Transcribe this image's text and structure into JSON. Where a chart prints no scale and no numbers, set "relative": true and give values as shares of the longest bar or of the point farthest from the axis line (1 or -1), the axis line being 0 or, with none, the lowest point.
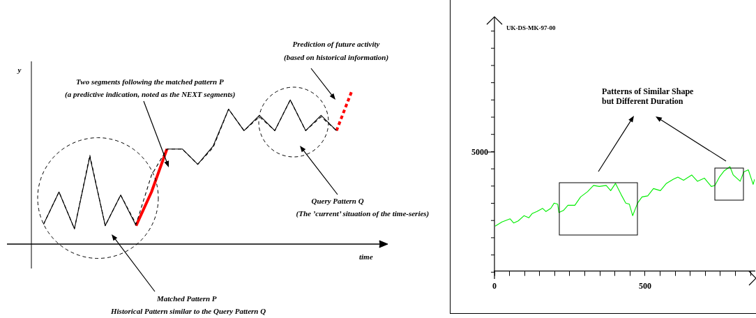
{
  "chart_data": [
    {
      "type": "line",
      "relative": true,
      "categories": [
        null,
        null,
        null,
        null,
        null,
        null,
        null,
        null,
        null,
        null,
        null,
        null,
        null,
        null,
        null,
        null,
        null,
        null,
        null,
        null,
        null
      ],
      "tick_labels": false,
      "grid": false,
      "legend": false,
      "marker": "none",
      "xlabel": "time",
      "ylabel": "y",
      "annotations": [
        "Prediction of future activity",
        "(based on historical information)",
        "Two segments following the matched pattern P",
        "(a predictive indication, noted as the NEXT segments)",
        "Query Pattern Q",
        "(The ’current’ situation of the time-series)",
        "Matched Pattern P",
        "Historical Pattern similar to the Query Pattern Q"
      ],
      "series": [
        {
          "color": "#000000",
          "line_style": "dashed",
          "values": [
            0.13,
            0.34,
            0.1,
            0.58,
            0.12,
            0.32,
            0.13,
            0.45,
            0.62,
            0.62,
            0.52,
            0.63,
            0.88,
            0.74,
            0.83,
            0.74,
            0.94,
            0.74,
            0.83,
            0.74,
            null
          ]
        },
        {
          "color": "#000000",
          "line_style": "solid",
          "values": [
            0.13,
            0.34,
            0.1,
            0.57,
            0.12,
            0.32,
            0.12,
            null,
            null,
            null,
            null,
            null,
            null,
            null,
            null,
            null,
            null,
            null,
            null,
            null,
            null
          ]
        },
        {
          "color": "#000000",
          "line_style": "solid",
          "values": [
            null,
            null,
            null,
            null,
            null,
            null,
            null,
            null,
            0.62,
            0.62,
            0.52,
            0.64,
            0.88,
            0.74,
            0.84,
            0.74,
            0.94,
            0.74,
            0.84,
            0.74,
            null
          ]
        },
        {
          "color": "#ff0000",
          "line_style": "solid",
          "values": [
            null,
            null,
            null,
            null,
            null,
            null,
            0.12,
            0.34,
            0.62,
            null,
            null,
            null,
            null,
            null,
            null,
            null,
            null,
            null,
            null,
            null,
            null
          ]
        },
        {
          "color": "#ff0000",
          "line_style": "dashed",
          "values": [
            null,
            null,
            null,
            null,
            null,
            null,
            null,
            null,
            null,
            null,
            null,
            null,
            null,
            null,
            null,
            null,
            null,
            null,
            null,
            0.74,
            1.0
          ]
        }
      ]
    },
    {
      "type": "line",
      "relative": true,
      "xlim": [
        0,
        864
      ],
      "xticks": [
        0,
        {
          "value": 50,
          "label": null
        },
        {
          "value": 100,
          "label": null
        },
        {
          "value": 150,
          "label": null
        },
        {
          "value": 200,
          "label": null
        },
        {
          "value": 250,
          "label": null
        },
        {
          "value": 300,
          "label": null
        },
        {
          "value": 350,
          "label": null
        },
        {
          "value": 400,
          "label": null
        },
        {
          "value": 450,
          "label": null
        },
        500,
        {
          "value": 550,
          "label": null
        },
        {
          "value": 600,
          "label": null
        },
        {
          "value": 650,
          "label": null
        },
        {
          "value": 700,
          "label": null
        },
        {
          "value": 750,
          "label": null
        },
        {
          "value": 800,
          "label": null
        },
        {
          "value": 850,
          "label": null
        }
      ],
      "tick_labels": "x",
      "grid": false,
      "legend": false,
      "marker": "none",
      "title": "UK-DS-MK-97-00",
      "annotations": [
        "Patterns of Similar Shape",
        "but Different Duration",
        "5000"
      ],
      "series": [
        {
          "color": "#00ee00",
          "line_style": "solid",
          "x": [
            2.3,
            25,
            52,
            64,
            79,
            98,
            114,
            125,
            141,
            160,
            171,
            187,
            198,
            210,
            214,
            229,
            244,
            267,
            286,
            309,
            329,
            348,
            371,
            386,
            402,
            421,
            436,
            448,
            459,
            475,
            490,
            509,
            528,
            551,
            571,
            594,
            609,
            628,
            655,
            674,
            697,
            720,
            732,
            747,
            763,
            782,
            793,
            816,
            828,
            843,
            859,
            864
          ],
          "values": [
            0.43,
            0.47,
            0.5,
            0.46,
            0.48,
            0.53,
            0.51,
            0.55,
            0.57,
            0.6,
            0.57,
            0.6,
            0.65,
            0.64,
            0.56,
            0.58,
            0.63,
            0.63,
            0.71,
            0.76,
            0.82,
            0.81,
            0.82,
            0.77,
            0.84,
            0.73,
            0.65,
            0.64,
            0.53,
            0.65,
            0.71,
            0.72,
            0.79,
            0.77,
            0.84,
            0.88,
            0.9,
            0.87,
            0.92,
            0.86,
            0.89,
            0.81,
            0.82,
            0.9,
            0.96,
            1.0,
            0.92,
            0.86,
            0.95,
            0.97,
            0.83,
            0.88
          ]
        }
      ]
    }
  ]
}
